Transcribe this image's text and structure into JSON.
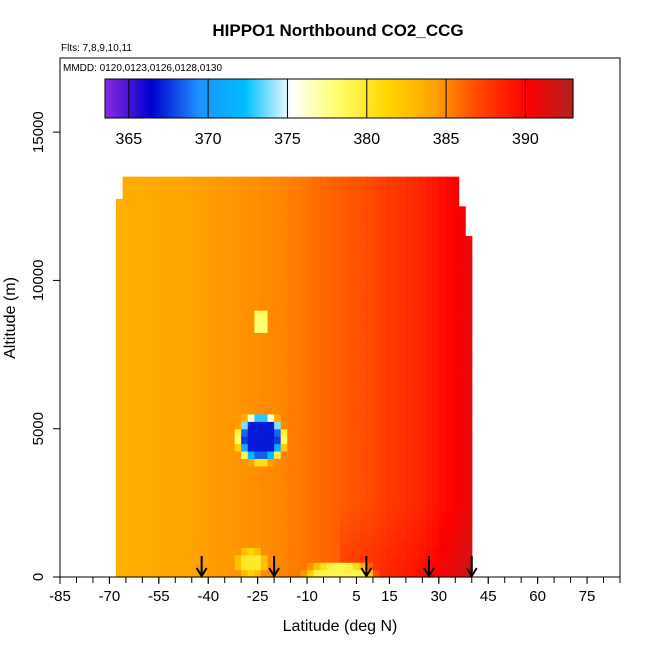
{
  "chart_data": {
    "type": "heatmap",
    "title": "HIPPO1 Northbound CO2_CCG",
    "flights_note": "Flts: 7,8,9,10,11",
    "dates_note": "MMDD: 0120,0123,0126,0128,0130",
    "xlabel": "Latitude (deg N)",
    "ylabel": "Altitude (m)",
    "xlim": [
      -85,
      85
    ],
    "ylim": [
      0,
      17500
    ],
    "x_ticks": [
      -85,
      -70,
      -55,
      -40,
      -25,
      -10,
      5,
      15,
      30,
      45,
      60,
      75
    ],
    "y_ticks": [
      0,
      5000,
      10000,
      15000
    ],
    "y_tick_labels": [
      "0",
      "5000",
      "10000",
      "15000"
    ],
    "colorbar": {
      "range": [
        363.5,
        393
      ],
      "ticks": [
        365,
        370,
        375,
        380,
        385,
        390
      ],
      "tick_labels": [
        "365",
        "370",
        "375",
        "380",
        "385",
        "390"
      ],
      "colors": [
        "#8a2be2",
        "#0000cd",
        "#1e90ff",
        "#00bfff",
        "#ffffff",
        "#ffff66",
        "#ffd700",
        "#ffa500",
        "#ff4500",
        "#ff0000",
        "#b22222"
      ]
    },
    "extent": {
      "lat_min": -68,
      "lat_max": 40,
      "alt_min": 0,
      "alt_max": 13300
    },
    "field": {
      "base": 383.5,
      "lat_gradient": [
        {
          "lat": -68,
          "value": 383.5
        },
        {
          "lat": -20,
          "value": 385.0
        },
        {
          "lat": 10,
          "value": 387.0
        },
        {
          "lat": 25,
          "value": 388.5
        },
        {
          "lat": 40,
          "value": 391.0
        }
      ],
      "anomalies": [
        {
          "lat": -24,
          "alt": 4700,
          "r_lat": 8,
          "r_alt": 900,
          "value": 367
        },
        {
          "lat": -24,
          "alt": 8600,
          "r_lat": 3,
          "r_alt": 500,
          "value": 378
        },
        {
          "lat": -27,
          "alt": 500,
          "r_lat": 5,
          "r_alt": 500,
          "value": 380
        },
        {
          "lat": 0,
          "alt": 200,
          "r_lat": 12,
          "r_alt": 300,
          "value": 379
        }
      ]
    },
    "arrows_lat": [
      -42,
      -20,
      8,
      27,
      40
    ]
  }
}
